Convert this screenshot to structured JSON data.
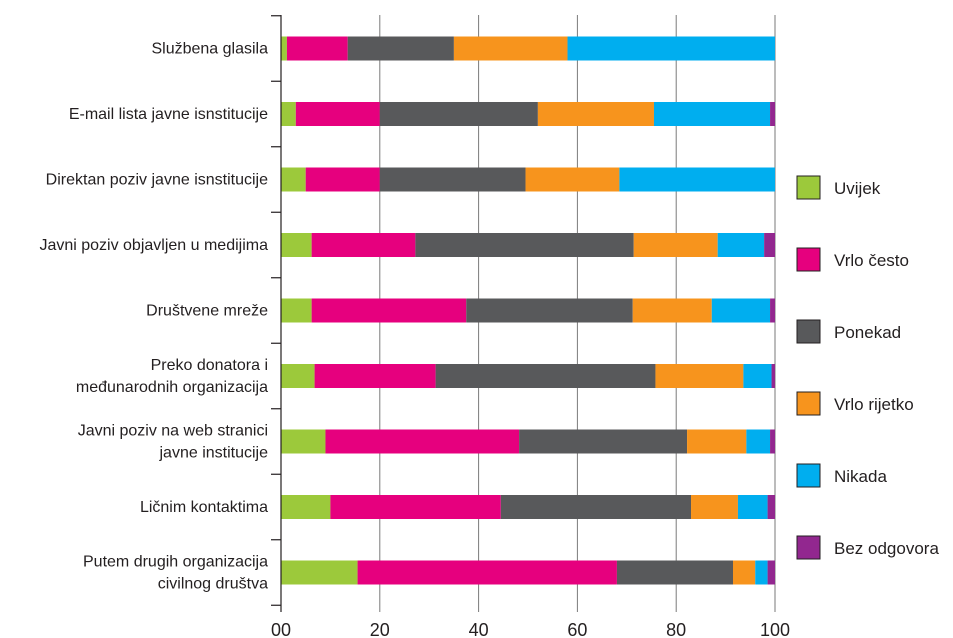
{
  "chart_data": {
    "type": "bar",
    "stacked": true,
    "orientation": "horizontal",
    "categories": [
      [
        "Službena glasila"
      ],
      [
        "E-mail lista javne isnstitucije"
      ],
      [
        "Direktan poziv javne isnstitucije"
      ],
      [
        "Javni poziv objavljen u medijima"
      ],
      [
        "Društvene mreže"
      ],
      [
        "Preko donatora i",
        "međunarodnih organizacija"
      ],
      [
        "Javni poziv na web stranici",
        "javne institucije"
      ],
      [
        "Ličnim kontaktima"
      ],
      [
        "Putem drugih organizacija",
        "civilnog društva"
      ]
    ],
    "series": [
      {
        "name": "Uvijek",
        "color": "#9cc93b",
        "values": [
          1.2,
          3,
          5,
          6.2,
          6.2,
          6.8,
          9,
          10,
          15.5
        ]
      },
      {
        "name": "Vrlo često",
        "color": "#e6007e",
        "values": [
          12.3,
          17,
          15,
          21,
          31.3,
          24.5,
          39.2,
          34.5,
          52.5
        ]
      },
      {
        "name": "Ponekad",
        "color": "#58595b",
        "values": [
          21.5,
          32,
          29.5,
          44.2,
          33.7,
          44.5,
          34,
          38.5,
          23.5
        ]
      },
      {
        "name": "Vrlo rijetko",
        "color": "#f7941d",
        "values": [
          23,
          23.5,
          19,
          17,
          16,
          17.8,
          12,
          9.5,
          4.5
        ]
      },
      {
        "name": "Nikada",
        "color": "#00aeef",
        "values": [
          42,
          23.5,
          31.5,
          9.4,
          11.8,
          5.7,
          4.8,
          6,
          2.5
        ]
      },
      {
        "name": "Bez odgovora",
        "color": "#92278f",
        "values": [
          0,
          1,
          0,
          2.2,
          1,
          0.7,
          1,
          1.5,
          1.5
        ]
      }
    ],
    "xlim": [
      0,
      100
    ],
    "xticks": [
      "00",
      "20",
      "40",
      "60",
      "80",
      "100"
    ],
    "xtick_values": [
      0,
      20,
      40,
      60,
      80,
      100
    ],
    "grid": true,
    "legend_position": "right"
  }
}
